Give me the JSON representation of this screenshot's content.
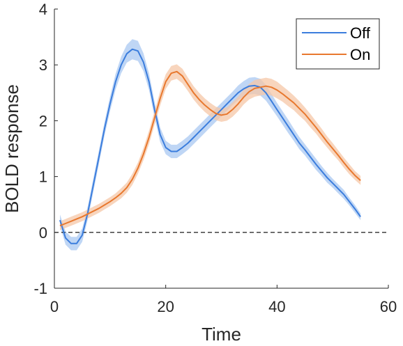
{
  "chart_data": {
    "type": "line",
    "xlabel": "Time",
    "ylabel": "BOLD response",
    "xlim": [
      0,
      60
    ],
    "ylim": [
      -1,
      4
    ],
    "xticks": [
      0,
      20,
      40,
      60
    ],
    "yticks": [
      -1,
      0,
      1,
      2,
      3,
      4
    ],
    "xtick_labels": [
      "0",
      "20",
      "40",
      "60"
    ],
    "ytick_labels": [
      "-1",
      "0",
      "1",
      "2",
      "3",
      "4"
    ],
    "grid": false,
    "legend_position": "top-right",
    "baseline": {
      "y": 0,
      "style": "dashed",
      "color": "#000000"
    },
    "series": [
      {
        "name": "Off",
        "color": "#3B7DDD",
        "band_color": "#A9C8F2",
        "x": [
          1,
          2,
          3,
          4,
          5,
          6,
          7,
          8,
          9,
          10,
          11,
          12,
          13,
          14,
          15,
          16,
          17,
          18,
          19,
          20,
          21,
          22,
          23,
          24,
          25,
          26,
          27,
          28,
          29,
          30,
          31,
          32,
          33,
          34,
          35,
          36,
          37,
          38,
          39,
          40,
          41,
          42,
          43,
          44,
          45,
          46,
          47,
          48,
          49,
          50,
          51,
          52,
          53,
          54,
          55
        ],
        "y": [
          0.22,
          -0.1,
          -0.2,
          -0.2,
          -0.05,
          0.35,
          0.85,
          1.35,
          1.85,
          2.3,
          2.7,
          3.0,
          3.2,
          3.28,
          3.25,
          3.05,
          2.7,
          2.2,
          1.75,
          1.52,
          1.45,
          1.45,
          1.52,
          1.6,
          1.7,
          1.8,
          1.9,
          2.0,
          2.1,
          2.2,
          2.3,
          2.4,
          2.5,
          2.57,
          2.62,
          2.63,
          2.6,
          2.5,
          2.35,
          2.2,
          2.05,
          1.9,
          1.75,
          1.6,
          1.48,
          1.35,
          1.22,
          1.1,
          0.98,
          0.88,
          0.78,
          0.68,
          0.55,
          0.42,
          0.28
        ],
        "err": [
          0.1,
          0.12,
          0.12,
          0.12,
          0.12,
          0.12,
          0.12,
          0.12,
          0.12,
          0.13,
          0.14,
          0.15,
          0.16,
          0.18,
          0.18,
          0.16,
          0.15,
          0.14,
          0.13,
          0.12,
          0.12,
          0.12,
          0.12,
          0.12,
          0.12,
          0.12,
          0.12,
          0.12,
          0.12,
          0.12,
          0.12,
          0.12,
          0.13,
          0.14,
          0.15,
          0.15,
          0.15,
          0.14,
          0.13,
          0.12,
          0.12,
          0.12,
          0.11,
          0.11,
          0.1,
          0.1,
          0.1,
          0.09,
          0.09,
          0.08,
          0.08,
          0.08,
          0.07,
          0.07,
          0.06
        ]
      },
      {
        "name": "On",
        "color": "#E8782E",
        "band_color": "#F6C7A7",
        "x": [
          1,
          2,
          3,
          4,
          5,
          6,
          7,
          8,
          9,
          10,
          11,
          12,
          13,
          14,
          15,
          16,
          17,
          18,
          19,
          20,
          21,
          22,
          23,
          24,
          25,
          26,
          27,
          28,
          29,
          30,
          31,
          32,
          33,
          34,
          35,
          36,
          37,
          38,
          39,
          40,
          41,
          42,
          43,
          44,
          45,
          46,
          47,
          48,
          49,
          50,
          51,
          52,
          53,
          54,
          55
        ],
        "y": [
          0.12,
          0.16,
          0.2,
          0.24,
          0.28,
          0.33,
          0.38,
          0.43,
          0.49,
          0.55,
          0.62,
          0.7,
          0.8,
          0.95,
          1.15,
          1.4,
          1.7,
          2.05,
          2.4,
          2.7,
          2.85,
          2.88,
          2.8,
          2.65,
          2.5,
          2.38,
          2.28,
          2.2,
          2.13,
          2.1,
          2.12,
          2.2,
          2.3,
          2.42,
          2.52,
          2.58,
          2.6,
          2.62,
          2.6,
          2.55,
          2.48,
          2.4,
          2.32,
          2.22,
          2.12,
          2.0,
          1.88,
          1.75,
          1.62,
          1.5,
          1.38,
          1.25,
          1.13,
          1.02,
          0.93
        ],
        "err": [
          0.08,
          0.08,
          0.08,
          0.08,
          0.08,
          0.08,
          0.08,
          0.08,
          0.08,
          0.08,
          0.08,
          0.09,
          0.09,
          0.1,
          0.1,
          0.11,
          0.12,
          0.12,
          0.13,
          0.13,
          0.13,
          0.13,
          0.13,
          0.12,
          0.12,
          0.12,
          0.12,
          0.12,
          0.12,
          0.12,
          0.12,
          0.13,
          0.13,
          0.13,
          0.14,
          0.15,
          0.15,
          0.15,
          0.15,
          0.15,
          0.14,
          0.14,
          0.13,
          0.13,
          0.12,
          0.12,
          0.11,
          0.11,
          0.1,
          0.1,
          0.09,
          0.09,
          0.09,
          0.08,
          0.08
        ]
      }
    ]
  }
}
